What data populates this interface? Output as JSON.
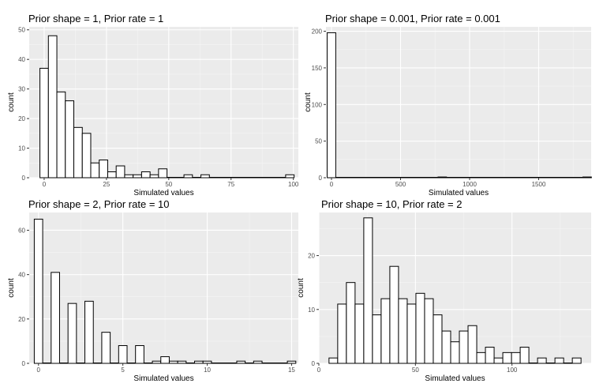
{
  "chart_data": [
    {
      "type": "bar",
      "title": "Prior shape = 1, Prior rate = 1",
      "xlabel": "Simulated values",
      "ylabel": "count",
      "xlim": [
        -6,
        102
      ],
      "ylim": [
        0,
        51
      ],
      "xticks": [
        0,
        25,
        50,
        75,
        100
      ],
      "xtick_labels": [
        "0",
        "25",
        "50",
        "75",
        "100"
      ],
      "yticks": [
        0,
        10,
        20,
        30,
        40,
        50
      ],
      "ytick_labels": [
        "0",
        "10",
        "20",
        "30",
        "40",
        "50"
      ],
      "bin_width": 3.4,
      "bin_centers": [
        0.0,
        3.4,
        6.8,
        10.2,
        13.6,
        17.0,
        20.4,
        23.8,
        27.2,
        30.6,
        34.0,
        37.4,
        40.8,
        44.2,
        47.6,
        51.0,
        54.4,
        57.8,
        61.2,
        64.6,
        68.0,
        71.4,
        74.8,
        78.2,
        81.6,
        85.0,
        88.4,
        91.8,
        95.2,
        98.6
      ],
      "counts": [
        37,
        48,
        29,
        26,
        17,
        15,
        5,
        6,
        2,
        4,
        1,
        1,
        2,
        1,
        3,
        0,
        0,
        1,
        0,
        1,
        0,
        0,
        0,
        0,
        0,
        0,
        0,
        0,
        0,
        1
      ],
      "grid": true
    },
    {
      "type": "bar",
      "title": "Prior shape = 0.001, Prior rate = 0.001",
      "xlabel": "Simulated values",
      "ylabel": "count",
      "xlim": [
        -40,
        1880
      ],
      "ylim": [
        0,
        206
      ],
      "xticks": [
        0,
        500,
        1000,
        1500
      ],
      "xtick_labels": [
        "0",
        "500",
        "1000",
        "1500"
      ],
      "yticks": [
        0,
        50,
        100,
        150,
        200
      ],
      "ytick_labels": [
        "0",
        "50",
        "100",
        "150",
        "200"
      ],
      "bin_width": 61.7,
      "bin_centers": [
        0,
        61.7,
        123.4,
        185.1,
        246.8,
        308.5,
        370.2,
        431.9,
        493.6,
        555.3,
        617,
        678.7,
        740.4,
        802.1,
        863.8,
        925.5,
        987.2,
        1048.9,
        1110.6,
        1172.3,
        1234,
        1295.7,
        1357.4,
        1419.1,
        1480.8,
        1542.5,
        1604.2,
        1665.9,
        1727.6,
        1789.3,
        1851
      ],
      "counts": [
        198,
        0,
        0,
        0,
        0,
        0,
        0,
        0,
        0,
        0,
        0,
        0,
        0,
        1,
        0,
        0,
        0,
        0,
        0,
        0,
        0,
        0,
        0,
        0,
        0,
        0,
        0,
        0,
        0,
        0,
        1
      ],
      "grid": true
    },
    {
      "type": "bar",
      "title": "Prior shape = 2, Prior rate = 10",
      "xlabel": "Simulated values",
      "ylabel": "count",
      "xlim": [
        -0.55,
        15.4
      ],
      "ylim": [
        0,
        68
      ],
      "xticks": [
        0,
        5,
        10,
        15
      ],
      "xtick_labels": [
        "0",
        "5",
        "10",
        "15"
      ],
      "yticks": [
        0,
        20,
        40,
        60
      ],
      "ytick_labels": [
        "0",
        "20",
        "40",
        "60"
      ],
      "bin_width": 0.5,
      "bin_centers": [
        0.0,
        0.5,
        1.0,
        1.5,
        2.0,
        2.5,
        3.0,
        3.5,
        4.0,
        4.5,
        5.0,
        5.5,
        6.0,
        6.5,
        7.0,
        7.5,
        8.0,
        8.5,
        9.0,
        9.5,
        10.0,
        10.5,
        11.0,
        11.5,
        12.0,
        12.5,
        13.0,
        13.5,
        14.0,
        14.5,
        15.0
      ],
      "counts": [
        65,
        0,
        41,
        0,
        27,
        0,
        28,
        0,
        14,
        0,
        8,
        0,
        8,
        0,
        1,
        3,
        1,
        1,
        0,
        1,
        1,
        0,
        0,
        0,
        1,
        0,
        1,
        0,
        0,
        0,
        1
      ],
      "grid": true
    },
    {
      "type": "bar",
      "title": "Prior shape = 10, Prior rate = 2",
      "xlabel": "Simulated values",
      "ylabel": "count",
      "xlim": [
        0,
        141
      ],
      "ylim": [
        0,
        28
      ],
      "xticks": [
        0,
        50,
        100
      ],
      "xtick_labels": [
        "0",
        "50",
        "100"
      ],
      "yticks": [
        0,
        10,
        20
      ],
      "ytick_labels": [
        "0",
        "10",
        "20"
      ],
      "bin_width": 4.5,
      "bin_centers": [
        7.5,
        12.0,
        16.5,
        21.0,
        25.5,
        30.0,
        34.5,
        39.0,
        43.5,
        48.0,
        52.5,
        57.0,
        61.5,
        66.0,
        70.5,
        75.0,
        79.5,
        84.0,
        88.5,
        93.0,
        97.5,
        102.0,
        106.5,
        111.0,
        115.5,
        120.0,
        124.5,
        129.0,
        133.5
      ],
      "counts": [
        1,
        11,
        15,
        11,
        27,
        9,
        12,
        18,
        12,
        11,
        13,
        12,
        9,
        6,
        4,
        6,
        7,
        2,
        3,
        1,
        2,
        2,
        3,
        0,
        1,
        0,
        1,
        0,
        1
      ],
      "grid": true
    }
  ]
}
